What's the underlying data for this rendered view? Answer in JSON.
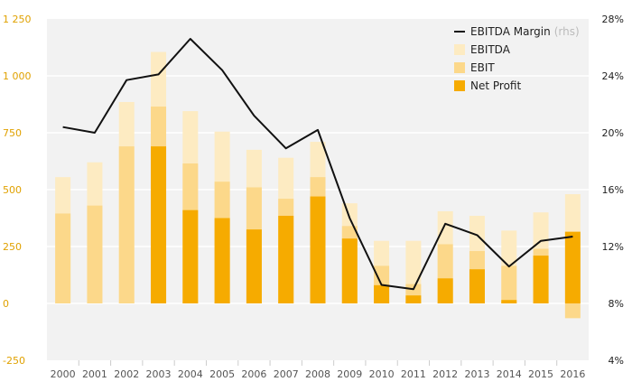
{
  "chart_data": {
    "type": "bar",
    "categories": [
      "2000",
      "2001",
      "2002",
      "2003",
      "2004",
      "2005",
      "2006",
      "2007",
      "2008",
      "2009",
      "2010",
      "2011",
      "2012",
      "2013",
      "2014",
      "2015",
      "2016"
    ],
    "series": [
      {
        "name": "EBITDA",
        "kind": "bar",
        "axis": "left",
        "color": "#fdebc2",
        "values": [
          555,
          620,
          885,
          1105,
          845,
          755,
          675,
          640,
          710,
          440,
          275,
          275,
          405,
          385,
          320,
          400,
          480
        ]
      },
      {
        "name": "EBIT",
        "kind": "bar",
        "axis": "left",
        "color": "#fcd88a",
        "values": [
          395,
          430,
          690,
          865,
          615,
          535,
          510,
          460,
          555,
          340,
          165,
          85,
          260,
          230,
          165,
          240,
          -65
        ]
      },
      {
        "name": "Net Profit",
        "kind": "bar",
        "axis": "left",
        "color": "#f6ab00",
        "values": [
          0,
          0,
          0,
          690,
          410,
          375,
          325,
          385,
          470,
          285,
          80,
          35,
          110,
          150,
          15,
          210,
          315
        ]
      },
      {
        "name": "EBITDA Margin",
        "name_suffix": "(rhs)",
        "kind": "line",
        "axis": "right",
        "color": "#111111",
        "values": [
          20.4,
          20.0,
          23.7,
          24.1,
          26.6,
          24.4,
          21.2,
          18.9,
          20.2,
          14.0,
          9.3,
          9.0,
          13.6,
          12.8,
          10.6,
          12.4,
          12.7
        ]
      }
    ],
    "yleft": {
      "lim": [
        -250,
        1250
      ],
      "ticks": [
        -250,
        0,
        250,
        500,
        750,
        1000,
        1250
      ],
      "tick_labels": [
        "-250",
        "0",
        "250",
        "500",
        "750",
        "1 000",
        "1 250"
      ],
      "color": "#e0a100"
    },
    "yright": {
      "lim": [
        4,
        28
      ],
      "ticks": [
        4,
        8,
        12,
        16,
        20,
        24,
        28
      ],
      "tick_labels": [
        "4%",
        "8%",
        "12%",
        "16%",
        "20%",
        "24%",
        "28%"
      ]
    },
    "legend_position": "top-right",
    "grid": "horizontal"
  }
}
